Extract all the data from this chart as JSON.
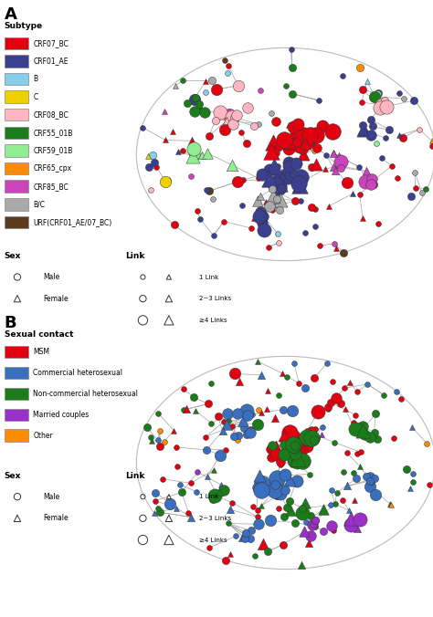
{
  "panel_A": {
    "label": "A",
    "legend_title": "Subtype",
    "legend_items": [
      {
        "label": "CRF07_BC",
        "color": "#E3000F"
      },
      {
        "label": "CRF01_AE",
        "color": "#3A3F8F"
      },
      {
        "label": "B",
        "color": "#87CEEB"
      },
      {
        "label": "C",
        "color": "#F0D000"
      },
      {
        "label": "CRF08_BC",
        "color": "#FFB6C1"
      },
      {
        "label": "CRF55_01B",
        "color": "#1A7D1A"
      },
      {
        "label": "CRF59_01B",
        "color": "#90EE90"
      },
      {
        "label": "CRF65_cpx",
        "color": "#FF8C00"
      },
      {
        "label": "CRF85_BC",
        "color": "#CC44BB"
      },
      {
        "label": "B/C",
        "color": "#AAAAAA"
      },
      {
        "label": "URF(CRF01_AE/07_BC)",
        "color": "#5C3A1E"
      }
    ],
    "colors": [
      "#E3000F",
      "#3A3F8F",
      "#87CEEB",
      "#F0D000",
      "#FFB6C1",
      "#1A7D1A",
      "#90EE90",
      "#FF8C00",
      "#CC44BB",
      "#AAAAAA",
      "#5C3A1E"
    ],
    "color_weights": [
      0.35,
      0.25,
      0.05,
      0.02,
      0.05,
      0.06,
      0.04,
      0.02,
      0.05,
      0.06,
      0.05
    ]
  },
  "panel_B": {
    "label": "B",
    "legend_title": "Sexual contact",
    "legend_items": [
      {
        "label": "MSM",
        "color": "#E3000F"
      },
      {
        "label": "Commercial heterosexual",
        "color": "#3A6FBF"
      },
      {
        "label": "Non-commercial heterosexual",
        "color": "#1A7D1A"
      },
      {
        "label": "Married couples",
        "color": "#9B30C8"
      },
      {
        "label": "Other",
        "color": "#FF8C00"
      }
    ],
    "colors": [
      "#E3000F",
      "#3A6FBF",
      "#1A7D1A",
      "#9B30C8",
      "#FF8C00"
    ],
    "color_weights": [
      0.35,
      0.28,
      0.28,
      0.05,
      0.04
    ]
  },
  "link_legend": [
    {
      "label": "1 Link"
    },
    {
      "label": "2~3 Links"
    },
    {
      "label": "≥4 Links"
    }
  ],
  "sex_legend": [
    {
      "label": "Male",
      "marker": "o"
    },
    {
      "label": "Female",
      "marker": "^"
    }
  ]
}
